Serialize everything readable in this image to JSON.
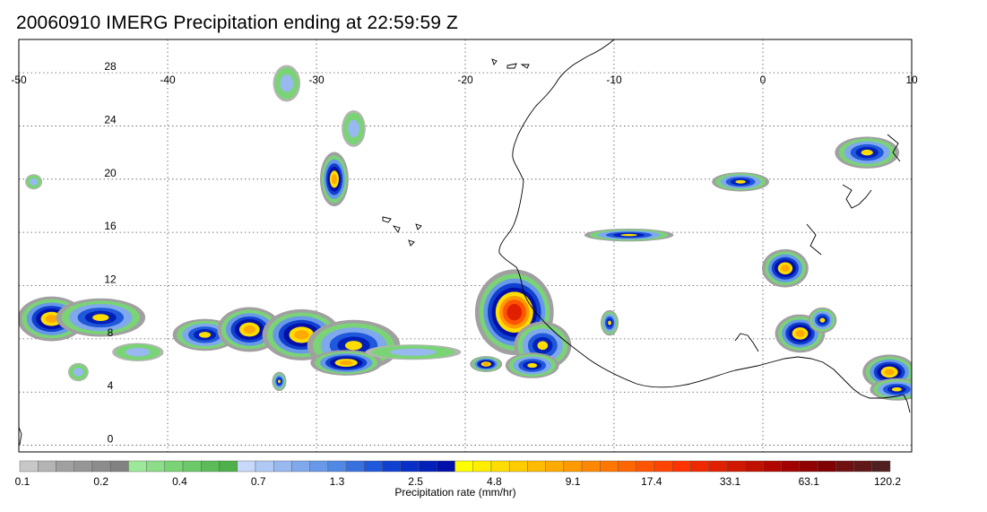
{
  "title": "20060910 IMERG Precipitation ending at 22:59:59 Z",
  "map": {
    "lon_range": [
      -50,
      10
    ],
    "lat_range": [
      -0.5,
      30.5
    ],
    "lon_labels": [
      "-50",
      "-40",
      "-30",
      "-20",
      "-10",
      "0",
      "10"
    ],
    "lon_values": [
      -50,
      -40,
      -30,
      -20,
      -10,
      0,
      10
    ],
    "lat_labels": [
      "0",
      "4",
      "8",
      "12",
      "16",
      "20",
      "24",
      "28"
    ],
    "lat_values": [
      0,
      4,
      8,
      12,
      16,
      20,
      24,
      28
    ],
    "grid": true,
    "grid_style": "dotted"
  },
  "colorbar": {
    "label": "Precipitation rate (mm/hr)",
    "tick_labels": [
      "0.1",
      "0.2",
      "0.4",
      "0.7",
      "1.3",
      "2.5",
      "4.8",
      "9.1",
      "17.4",
      "33.1",
      "63.1",
      "120.2"
    ],
    "colors": [
      "#c8c8c8",
      "#b4b4b4",
      "#a0a0a0",
      "#969696",
      "#8c8c8c",
      "#828282",
      "#9ee89a",
      "#8cdc88",
      "#7ad476",
      "#6cc868",
      "#5cbc58",
      "#4eb04a",
      "#c8d8f8",
      "#b0c8f4",
      "#98b8f0",
      "#80a8ec",
      "#6898e8",
      "#5088e4",
      "#3870e0",
      "#2058dc",
      "#1040d0",
      "#0830c8",
      "#0020b8",
      "#0010a8",
      "#ffff00",
      "#ffee00",
      "#ffdd00",
      "#ffcc00",
      "#ffbb00",
      "#ffaa00",
      "#ff9900",
      "#ff8800",
      "#ff7700",
      "#ff6600",
      "#ff5500",
      "#ff4400",
      "#ff3300",
      "#f02800",
      "#e02000",
      "#d01800",
      "#c01000",
      "#b00800",
      "#a00000",
      "#900000",
      "#800000",
      "#701010",
      "#601818",
      "#502020"
    ]
  },
  "precip_cells": [
    {
      "lon": -47.8,
      "lat": 9.5,
      "rx": 1.9,
      "ry": 1.4,
      "level": "heavy"
    },
    {
      "lon": -44.5,
      "lat": 9.6,
      "rx": 2.5,
      "ry": 1.2,
      "level": "moderate"
    },
    {
      "lon": -37.5,
      "lat": 8.3,
      "rx": 1.8,
      "ry": 1.0,
      "level": "moderate"
    },
    {
      "lon": -34.5,
      "lat": 8.7,
      "rx": 1.8,
      "ry": 1.4,
      "level": "heavy"
    },
    {
      "lon": -31.0,
      "lat": 8.3,
      "rx": 2.2,
      "ry": 1.6,
      "level": "heavy"
    },
    {
      "lon": -27.5,
      "lat": 7.5,
      "rx": 2.6,
      "ry": 1.6,
      "level": "moderate"
    },
    {
      "lon": -28.0,
      "lat": 6.2,
      "rx": 2.0,
      "ry": 0.8,
      "level": "heavy"
    },
    {
      "lon": -32.5,
      "lat": 4.8,
      "rx": 0.4,
      "ry": 0.6,
      "level": "moderate"
    },
    {
      "lon": -46.0,
      "lat": 5.5,
      "rx": 0.6,
      "ry": 0.6,
      "level": "light"
    },
    {
      "lon": -18.6,
      "lat": 6.1,
      "rx": 0.9,
      "ry": 0.5,
      "level": "heavy"
    },
    {
      "lon": -16.7,
      "lat": 10.0,
      "rx": 2.3,
      "ry": 2.8,
      "level": "extreme"
    },
    {
      "lon": -14.8,
      "lat": 7.5,
      "rx": 1.6,
      "ry": 1.5,
      "level": "moderate"
    },
    {
      "lon": -15.5,
      "lat": 6.0,
      "rx": 1.5,
      "ry": 0.8,
      "level": "moderate"
    },
    {
      "lon": -9.0,
      "lat": 15.8,
      "rx": 2.5,
      "ry": 0.4,
      "level": "moderate"
    },
    {
      "lon": 1.5,
      "lat": 13.3,
      "rx": 1.3,
      "ry": 1.2,
      "level": "heavy"
    },
    {
      "lon": 2.5,
      "lat": 8.4,
      "rx": 1.4,
      "ry": 1.2,
      "level": "heavy"
    },
    {
      "lon": 4.0,
      "lat": 9.4,
      "rx": 0.8,
      "ry": 0.8,
      "level": "moderate"
    },
    {
      "lon": 8.5,
      "lat": 5.5,
      "rx": 1.5,
      "ry": 1.1,
      "level": "heavy"
    },
    {
      "lon": 9.0,
      "lat": 4.2,
      "rx": 1.5,
      "ry": 0.7,
      "level": "moderate"
    },
    {
      "lon": 7.0,
      "lat": 22.0,
      "rx": 1.8,
      "ry": 1.0,
      "level": "moderate"
    },
    {
      "lon": -1.5,
      "lat": 19.8,
      "rx": 1.6,
      "ry": 0.6,
      "level": "moderate"
    },
    {
      "lon": -28.8,
      "lat": 20.0,
      "rx": 0.8,
      "ry": 1.7,
      "level": "heavy"
    },
    {
      "lon": -32.0,
      "lat": 27.2,
      "rx": 0.8,
      "ry": 1.2,
      "level": "light"
    },
    {
      "lon": -27.5,
      "lat": 23.8,
      "rx": 0.7,
      "ry": 1.2,
      "level": "light"
    },
    {
      "lon": -49.0,
      "lat": 19.8,
      "rx": 0.5,
      "ry": 0.5,
      "level": "light"
    },
    {
      "lon": -10.3,
      "lat": 9.2,
      "rx": 0.5,
      "ry": 0.8,
      "level": "moderate"
    },
    {
      "lon": -23.5,
      "lat": 7.0,
      "rx": 2.8,
      "ry": 0.5,
      "level": "light"
    },
    {
      "lon": -42.0,
      "lat": 7.0,
      "rx": 1.5,
      "ry": 0.6,
      "level": "light"
    }
  ]
}
